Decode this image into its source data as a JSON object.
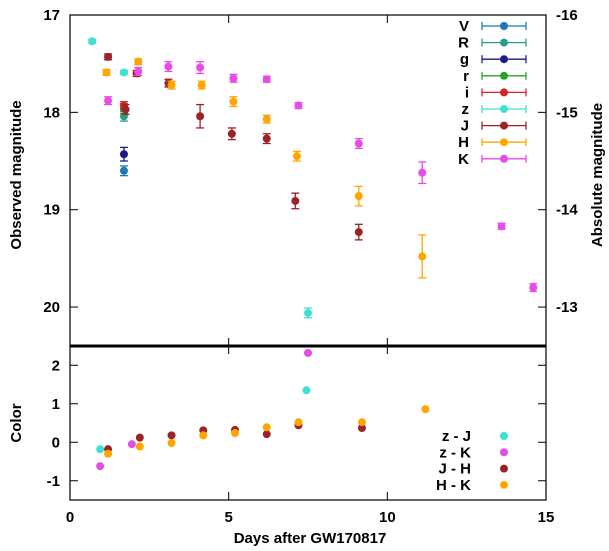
{
  "chart_data": [
    {
      "type": "scatter",
      "panel": "magnitudes",
      "xlabel": "",
      "ylabel": "Observed magnitude",
      "y2label": "Absolute magnitude",
      "xlim": [
        0,
        15
      ],
      "ylim": [
        17,
        20.4
      ],
      "ylim_inverted": true,
      "y2_offset": 33,
      "x_ticks": [
        0,
        5,
        10,
        15
      ],
      "y_ticks": [
        "17",
        "18",
        "19",
        "20"
      ],
      "y2_ticks": [
        "-16",
        "-15",
        "-14",
        "-13"
      ],
      "legend_position": "top-right",
      "series": [
        {
          "name": "V",
          "color": "#1f77b4",
          "points": [
            [
              1.7,
              18.6,
              0.05
            ]
          ]
        },
        {
          "name": "R",
          "color": "#2a9d8f",
          "points": [
            [
              1.7,
              18.04,
              0.05
            ]
          ]
        },
        {
          "name": "g",
          "color": "#1a1a8c",
          "points": [
            [
              1.7,
              18.43,
              0.07
            ]
          ]
        },
        {
          "name": "r",
          "color": "#2ca02c",
          "points": [
            [
              1.7,
              17.96,
              0.05
            ]
          ]
        },
        {
          "name": "i",
          "color": "#d62728",
          "points": [
            [
              1.7,
              17.93,
              0.04
            ]
          ]
        },
        {
          "name": "z",
          "color": "#40e0d0",
          "points": [
            [
              0.7,
              17.27,
              0.02
            ],
            [
              1.7,
              17.59,
              0.02
            ],
            [
              7.5,
              20.06,
              0.05
            ]
          ]
        },
        {
          "name": "J",
          "color": "#9b2226",
          "points": [
            [
              1.2,
              17.43,
              0.03
            ],
            [
              1.75,
              17.97,
              0.05
            ],
            [
              2.1,
              17.6,
              0.03
            ],
            [
              3.1,
              17.7,
              0.04
            ],
            [
              4.1,
              18.04,
              0.12
            ],
            [
              5.1,
              18.22,
              0.06
            ],
            [
              6.2,
              18.27,
              0.05
            ],
            [
              7.1,
              18.91,
              0.08
            ],
            [
              9.1,
              19.23,
              0.08
            ]
          ]
        },
        {
          "name": "H",
          "color": "#ffa500",
          "points": [
            [
              1.15,
              17.59,
              0.03
            ],
            [
              2.15,
              17.48,
              0.03
            ],
            [
              3.2,
              17.72,
              0.04
            ],
            [
              4.15,
              17.72,
              0.04
            ],
            [
              5.15,
              17.89,
              0.05
            ],
            [
              6.2,
              18.07,
              0.04
            ],
            [
              7.15,
              18.45,
              0.05
            ],
            [
              9.1,
              18.86,
              0.1
            ],
            [
              11.1,
              19.48,
              0.22
            ]
          ]
        },
        {
          "name": "K",
          "color": "#e64ce6",
          "points": [
            [
              1.2,
              17.88,
              0.04
            ],
            [
              2.15,
              17.58,
              0.04
            ],
            [
              3.1,
              17.53,
              0.05
            ],
            [
              4.1,
              17.54,
              0.06
            ],
            [
              5.15,
              17.65,
              0.04
            ],
            [
              6.2,
              17.66,
              0.03
            ],
            [
              7.2,
              17.93,
              0.03
            ],
            [
              9.1,
              18.32,
              0.05
            ],
            [
              11.1,
              18.62,
              0.11
            ],
            [
              13.6,
              19.17,
              0.03
            ],
            [
              14.6,
              19.8,
              0.04
            ]
          ]
        }
      ]
    },
    {
      "type": "scatter",
      "panel": "colors",
      "xlabel": "Days after GW170817",
      "ylabel": "Color",
      "xlim": [
        0,
        15
      ],
      "ylim": [
        -1.5,
        2.5
      ],
      "x_ticks": [
        0,
        5,
        10,
        15
      ],
      "y_ticks": [
        -1,
        0,
        1,
        2
      ],
      "legend_position": "bottom-right",
      "series": [
        {
          "name": "z - J",
          "color": "#40e0d0",
          "points": [
            [
              0.95,
              -0.18
            ],
            [
              7.45,
              1.35
            ]
          ]
        },
        {
          "name": "z - K",
          "color": "#e64ce6",
          "points": [
            [
              0.95,
              -0.62
            ],
            [
              1.95,
              -0.05
            ],
            [
              7.5,
              2.32
            ]
          ]
        },
        {
          "name": "J - H",
          "color": "#9b2226",
          "points": [
            [
              1.2,
              -0.18
            ],
            [
              2.2,
              0.12
            ],
            [
              3.2,
              0.18
            ],
            [
              4.2,
              0.31
            ],
            [
              5.2,
              0.32
            ],
            [
              6.2,
              0.21
            ],
            [
              7.2,
              0.44
            ],
            [
              9.2,
              0.37
            ]
          ]
        },
        {
          "name": "H - K",
          "color": "#ffa500",
          "points": [
            [
              1.2,
              -0.3
            ],
            [
              2.2,
              -0.11
            ],
            [
              3.2,
              -0.02
            ],
            [
              4.2,
              0.18
            ],
            [
              5.2,
              0.24
            ],
            [
              6.2,
              0.39
            ],
            [
              7.2,
              0.52
            ],
            [
              9.2,
              0.52
            ],
            [
              11.2,
              0.86
            ]
          ]
        }
      ]
    }
  ]
}
